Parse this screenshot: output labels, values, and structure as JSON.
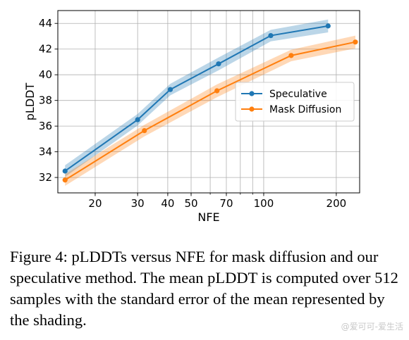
{
  "chart_data": {
    "type": "line",
    "xlabel": "NFE",
    "ylabel": "pLDDT",
    "xscale": "log",
    "xlim": [
      14,
      250
    ],
    "ylim": [
      30.8,
      45
    ],
    "x_ticks": [
      20,
      30,
      40,
      50,
      70,
      100,
      200
    ],
    "y_ticks": [
      32,
      34,
      36,
      38,
      40,
      42,
      44
    ],
    "grid": true,
    "legend_position": "center-right",
    "series": [
      {
        "name": "Speculative",
        "color": "#1f77b4",
        "x": [
          15,
          30,
          41,
          65,
          107,
          185
        ],
        "y": [
          32.5,
          36.5,
          38.85,
          40.85,
          43.05,
          43.8
        ],
        "err": [
          0.45,
          0.45,
          0.45,
          0.5,
          0.45,
          0.5
        ]
      },
      {
        "name": "Mask Diffusion",
        "color": "#ff7f0e",
        "x": [
          15,
          32,
          64,
          130,
          240
        ],
        "y": [
          31.8,
          35.65,
          38.75,
          41.5,
          42.55
        ],
        "err": [
          0.45,
          0.45,
          0.5,
          0.45,
          0.5
        ]
      }
    ]
  },
  "caption": "Figure 4: pLDDTs versus NFE for mask diffusion and our speculative method. The mean pLDDT is computed over 512 samples with the standard error of the mean represented by the shading.",
  "watermark": "@爱可可-爱生活"
}
